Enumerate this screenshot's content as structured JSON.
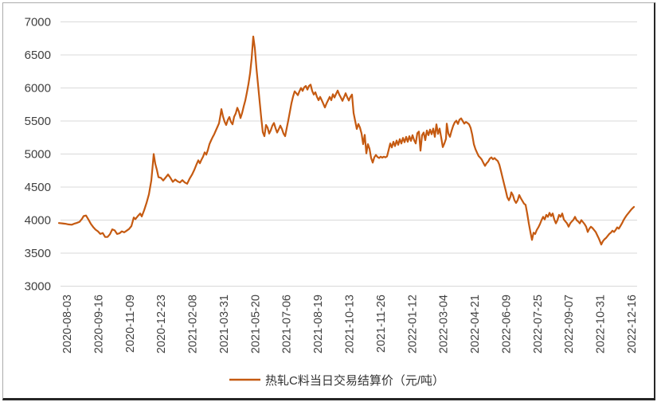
{
  "colors": {
    "series_line": "#C55A11",
    "gridline": "#D9D9D9",
    "axis_text": "#404040",
    "legend_text": "#333333",
    "frame_light": "#ABABAB",
    "frame_dark": "#262626",
    "background": "#FFFFFF"
  },
  "legend": {
    "label": "热轧C料当日交易结算价（元/吨）"
  },
  "chart_data": {
    "type": "line",
    "title": "",
    "series_name": "热轧C料当日交易结算价（元/吨）",
    "legend_position": "bottom-center",
    "grid": "horizontal-only",
    "ylim": [
      3000,
      7000
    ],
    "y_ticks": [
      7000,
      6500,
      6000,
      5500,
      5000,
      4500,
      4000,
      3500,
      3000
    ],
    "x_tick_labels": [
      "2020-08-03",
      "2020-09-16",
      "2020-11-09",
      "2020-12-23",
      "2021-02-08",
      "2021-03-31",
      "2021-05-20",
      "2021-07-06",
      "2021-08-19",
      "2021-10-13",
      "2021-11-26",
      "2022-01-12",
      "2022-03-04",
      "2022-04-21",
      "2022-06-09",
      "2022-07-25",
      "2022-09-07",
      "2022-10-31",
      "2022-12-16"
    ],
    "x_axis_note": "daily settlement price; points given as [x_position_px_along_time_axis, price_yuan_per_ton]; first tick 2020-08-03 at px 84, last tick 2022-12-16 at px 793",
    "points": [
      [
        74,
        3955
      ],
      [
        78,
        3950
      ],
      [
        82,
        3945
      ],
      [
        86,
        3935
      ],
      [
        90,
        3930
      ],
      [
        93,
        3945
      ],
      [
        96,
        3955
      ],
      [
        100,
        3975
      ],
      [
        103,
        4020
      ],
      [
        105,
        4060
      ],
      [
        108,
        4070
      ],
      [
        111,
        4010
      ],
      [
        114,
        3945
      ],
      [
        117,
        3895
      ],
      [
        120,
        3855
      ],
      [
        123,
        3830
      ],
      [
        126,
        3790
      ],
      [
        129,
        3805
      ],
      [
        132,
        3745
      ],
      [
        135,
        3745
      ],
      [
        138,
        3785
      ],
      [
        141,
        3860
      ],
      [
        144,
        3845
      ],
      [
        147,
        3790
      ],
      [
        150,
        3800
      ],
      [
        153,
        3830
      ],
      [
        156,
        3815
      ],
      [
        159,
        3840
      ],
      [
        162,
        3865
      ],
      [
        165,
        3910
      ],
      [
        168,
        4040
      ],
      [
        170,
        4015
      ],
      [
        173,
        4060
      ],
      [
        176,
        4100
      ],
      [
        178,
        4055
      ],
      [
        181,
        4150
      ],
      [
        184,
        4260
      ],
      [
        187,
        4390
      ],
      [
        190,
        4600
      ],
      [
        192,
        4860
      ],
      [
        193,
        5000
      ],
      [
        195,
        4850
      ],
      [
        197,
        4760
      ],
      [
        199,
        4650
      ],
      [
        202,
        4640
      ],
      [
        205,
        4600
      ],
      [
        208,
        4645
      ],
      [
        211,
        4690
      ],
      [
        214,
        4640
      ],
      [
        217,
        4580
      ],
      [
        220,
        4615
      ],
      [
        223,
        4585
      ],
      [
        226,
        4570
      ],
      [
        229,
        4605
      ],
      [
        232,
        4570
      ],
      [
        235,
        4550
      ],
      [
        238,
        4625
      ],
      [
        241,
        4685
      ],
      [
        244,
        4760
      ],
      [
        247,
        4850
      ],
      [
        249,
        4905
      ],
      [
        251,
        4860
      ],
      [
        253,
        4915
      ],
      [
        255,
        4960
      ],
      [
        257,
        5025
      ],
      [
        259,
        4990
      ],
      [
        261,
        5060
      ],
      [
        263,
        5150
      ],
      [
        265,
        5205
      ],
      [
        267,
        5255
      ],
      [
        269,
        5300
      ],
      [
        271,
        5355
      ],
      [
        273,
        5410
      ],
      [
        275,
        5465
      ],
      [
        277,
        5600
      ],
      [
        278,
        5680
      ],
      [
        280,
        5570
      ],
      [
        282,
        5490
      ],
      [
        284,
        5440
      ],
      [
        286,
        5515
      ],
      [
        288,
        5560
      ],
      [
        290,
        5485
      ],
      [
        292,
        5450
      ],
      [
        294,
        5565
      ],
      [
        296,
        5615
      ],
      [
        298,
        5700
      ],
      [
        300,
        5640
      ],
      [
        302,
        5545
      ],
      [
        304,
        5620
      ],
      [
        306,
        5720
      ],
      [
        308,
        5810
      ],
      [
        310,
        5930
      ],
      [
        312,
        6060
      ],
      [
        314,
        6220
      ],
      [
        316,
        6450
      ],
      [
        318,
        6780
      ],
      [
        320,
        6600
      ],
      [
        322,
        6300
      ],
      [
        324,
        6050
      ],
      [
        326,
        5800
      ],
      [
        328,
        5550
      ],
      [
        330,
        5330
      ],
      [
        332,
        5270
      ],
      [
        334,
        5440
      ],
      [
        336,
        5400
      ],
      [
        338,
        5310
      ],
      [
        340,
        5360
      ],
      [
        342,
        5430
      ],
      [
        344,
        5470
      ],
      [
        346,
        5390
      ],
      [
        348,
        5325
      ],
      [
        350,
        5375
      ],
      [
        352,
        5430
      ],
      [
        354,
        5380
      ],
      [
        356,
        5310
      ],
      [
        358,
        5270
      ],
      [
        360,
        5390
      ],
      [
        362,
        5510
      ],
      [
        364,
        5640
      ],
      [
        366,
        5770
      ],
      [
        368,
        5870
      ],
      [
        370,
        5950
      ],
      [
        372,
        5920
      ],
      [
        374,
        5890
      ],
      [
        376,
        5950
      ],
      [
        378,
        6000
      ],
      [
        380,
        5955
      ],
      [
        382,
        6010
      ],
      [
        384,
        6030
      ],
      [
        386,
        5975
      ],
      [
        388,
        6030
      ],
      [
        390,
        6050
      ],
      [
        392,
        5955
      ],
      [
        394,
        5900
      ],
      [
        396,
        5935
      ],
      [
        398,
        5865
      ],
      [
        400,
        5815
      ],
      [
        402,
        5865
      ],
      [
        404,
        5815
      ],
      [
        406,
        5760
      ],
      [
        408,
        5705
      ],
      [
        410,
        5765
      ],
      [
        412,
        5815
      ],
      [
        414,
        5865
      ],
      [
        416,
        5815
      ],
      [
        418,
        5905
      ],
      [
        420,
        5855
      ],
      [
        422,
        5910
      ],
      [
        424,
        5960
      ],
      [
        426,
        5900
      ],
      [
        428,
        5855
      ],
      [
        430,
        5805
      ],
      [
        432,
        5860
      ],
      [
        434,
        5920
      ],
      [
        436,
        5860
      ],
      [
        438,
        5810
      ],
      [
        440,
        5865
      ],
      [
        442,
        5900
      ],
      [
        444,
        5620
      ],
      [
        446,
        5500
      ],
      [
        448,
        5380
      ],
      [
        450,
        5455
      ],
      [
        452,
        5400
      ],
      [
        454,
        5310
      ],
      [
        456,
        5150
      ],
      [
        458,
        5290
      ],
      [
        460,
        5010
      ],
      [
        462,
        5150
      ],
      [
        464,
        5080
      ],
      [
        466,
        4940
      ],
      [
        468,
        4870
      ],
      [
        470,
        4950
      ],
      [
        472,
        4985
      ],
      [
        474,
        4955
      ],
      [
        476,
        4940
      ],
      [
        478,
        4960
      ],
      [
        480,
        4945
      ],
      [
        482,
        4960
      ],
      [
        484,
        4950
      ],
      [
        486,
        4965
      ],
      [
        488,
        5060
      ],
      [
        490,
        5160
      ],
      [
        492,
        5100
      ],
      [
        494,
        5185
      ],
      [
        496,
        5120
      ],
      [
        498,
        5205
      ],
      [
        500,
        5140
      ],
      [
        502,
        5225
      ],
      [
        504,
        5160
      ],
      [
        506,
        5245
      ],
      [
        508,
        5180
      ],
      [
        510,
        5260
      ],
      [
        512,
        5185
      ],
      [
        514,
        5270
      ],
      [
        516,
        5200
      ],
      [
        518,
        5285
      ],
      [
        520,
        5210
      ],
      [
        522,
        5160
      ],
      [
        524,
        5315
      ],
      [
        526,
        5340
      ],
      [
        528,
        5050
      ],
      [
        530,
        5285
      ],
      [
        532,
        5325
      ],
      [
        534,
        5210
      ],
      [
        536,
        5355
      ],
      [
        538,
        5285
      ],
      [
        540,
        5370
      ],
      [
        542,
        5300
      ],
      [
        544,
        5385
      ],
      [
        546,
        5260
      ],
      [
        548,
        5450
      ],
      [
        550,
        5305
      ],
      [
        552,
        5385
      ],
      [
        554,
        5250
      ],
      [
        556,
        5105
      ],
      [
        558,
        5160
      ],
      [
        560,
        5230
      ],
      [
        561,
        5460
      ],
      [
        563,
        5310
      ],
      [
        565,
        5260
      ],
      [
        567,
        5350
      ],
      [
        569,
        5425
      ],
      [
        571,
        5480
      ],
      [
        573,
        5505
      ],
      [
        575,
        5455
      ],
      [
        577,
        5520
      ],
      [
        579,
        5540
      ],
      [
        581,
        5500
      ],
      [
        583,
        5460
      ],
      [
        585,
        5485
      ],
      [
        587,
        5470
      ],
      [
        589,
        5450
      ],
      [
        591,
        5395
      ],
      [
        593,
        5290
      ],
      [
        595,
        5150
      ],
      [
        597,
        5075
      ],
      [
        599,
        5020
      ],
      [
        601,
        4970
      ],
      [
        603,
        4945
      ],
      [
        605,
        4915
      ],
      [
        607,
        4865
      ],
      [
        609,
        4820
      ],
      [
        611,
        4860
      ],
      [
        613,
        4885
      ],
      [
        615,
        4930
      ],
      [
        617,
        4950
      ],
      [
        619,
        4920
      ],
      [
        621,
        4940
      ],
      [
        623,
        4915
      ],
      [
        625,
        4895
      ],
      [
        627,
        4840
      ],
      [
        629,
        4745
      ],
      [
        631,
        4645
      ],
      [
        633,
        4545
      ],
      [
        635,
        4450
      ],
      [
        637,
        4345
      ],
      [
        639,
        4300
      ],
      [
        641,
        4355
      ],
      [
        642,
        4420
      ],
      [
        644,
        4380
      ],
      [
        646,
        4300
      ],
      [
        648,
        4260
      ],
      [
        650,
        4300
      ],
      [
        652,
        4380
      ],
      [
        654,
        4330
      ],
      [
        656,
        4290
      ],
      [
        658,
        4250
      ],
      [
        660,
        4230
      ],
      [
        662,
        4100
      ],
      [
        664,
        3950
      ],
      [
        666,
        3820
      ],
      [
        668,
        3700
      ],
      [
        670,
        3810
      ],
      [
        672,
        3790
      ],
      [
        674,
        3850
      ],
      [
        676,
        3890
      ],
      [
        678,
        3940
      ],
      [
        680,
        4000
      ],
      [
        682,
        4050
      ],
      [
        684,
        4010
      ],
      [
        686,
        4080
      ],
      [
        688,
        4050
      ],
      [
        690,
        4110
      ],
      [
        692,
        4060
      ],
      [
        694,
        4100
      ],
      [
        696,
        4010
      ],
      [
        698,
        3950
      ],
      [
        700,
        4000
      ],
      [
        702,
        4080
      ],
      [
        704,
        4050
      ],
      [
        706,
        4100
      ],
      [
        708,
        4010
      ],
      [
        710,
        3980
      ],
      [
        712,
        3950
      ],
      [
        714,
        3900
      ],
      [
        716,
        3950
      ],
      [
        718,
        3980
      ],
      [
        720,
        4005
      ],
      [
        722,
        4050
      ],
      [
        724,
        4000
      ],
      [
        726,
        3980
      ],
      [
        728,
        3950
      ],
      [
        730,
        4000
      ],
      [
        732,
        3970
      ],
      [
        734,
        3940
      ],
      [
        736,
        3900
      ],
      [
        738,
        3820
      ],
      [
        740,
        3870
      ],
      [
        742,
        3900
      ],
      [
        744,
        3880
      ],
      [
        746,
        3850
      ],
      [
        748,
        3820
      ],
      [
        750,
        3770
      ],
      [
        752,
        3720
      ],
      [
        754,
        3660
      ],
      [
        755,
        3630
      ],
      [
        757,
        3680
      ],
      [
        759,
        3710
      ],
      [
        761,
        3730
      ],
      [
        763,
        3760
      ],
      [
        765,
        3790
      ],
      [
        767,
        3810
      ],
      [
        769,
        3840
      ],
      [
        771,
        3820
      ],
      [
        773,
        3850
      ],
      [
        775,
        3890
      ],
      [
        777,
        3870
      ],
      [
        779,
        3910
      ],
      [
        781,
        3950
      ],
      [
        783,
        4000
      ],
      [
        785,
        4040
      ],
      [
        787,
        4075
      ],
      [
        789,
        4105
      ],
      [
        791,
        4135
      ],
      [
        793,
        4165
      ],
      [
        796,
        4200
      ]
    ]
  }
}
